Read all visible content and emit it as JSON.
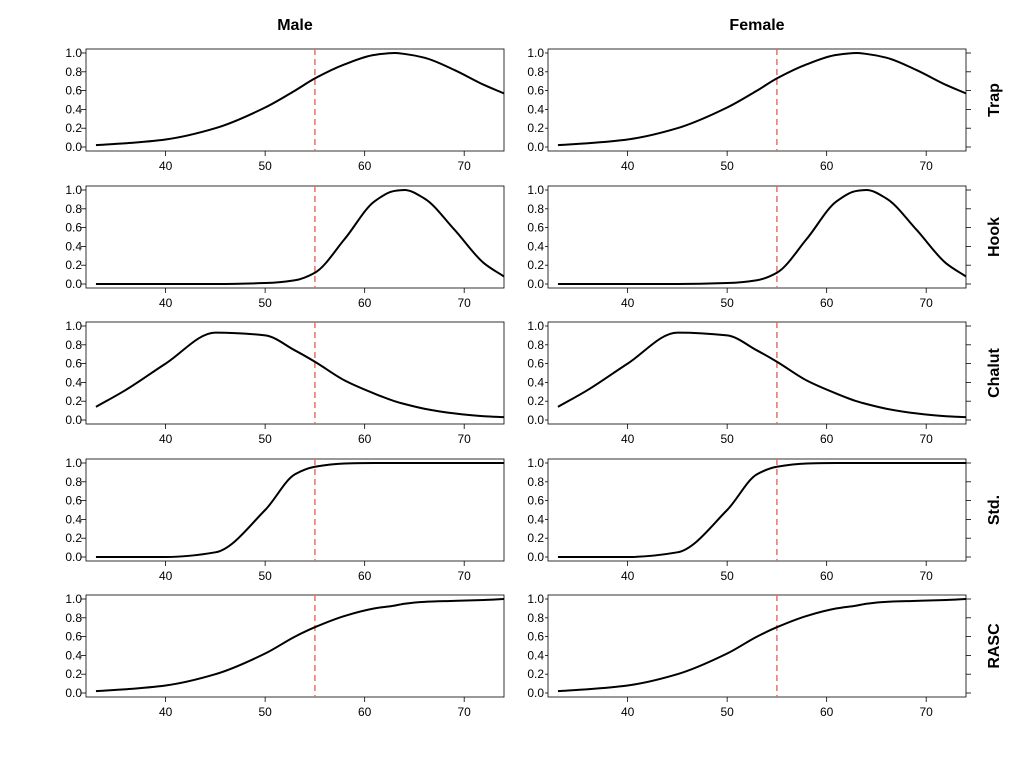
{
  "chart_data": {
    "type": "line",
    "columns": [
      "Male",
      "Female"
    ],
    "rows": [
      "Trap",
      "Hook",
      "Chalut",
      "Std.",
      "RASC"
    ],
    "xlim": [
      32,
      74
    ],
    "ylim": [
      0,
      1
    ],
    "xticks": [
      40,
      50,
      60,
      70
    ],
    "yticks": [
      0.0,
      0.2,
      0.4,
      0.6,
      0.8,
      1.0
    ],
    "ytick_labels": [
      "0.0",
      "0.2",
      "0.4",
      "0.6",
      "0.8",
      "1.0"
    ],
    "reference_line": {
      "x": 55,
      "color": "#e8675f",
      "style": "dashed"
    },
    "line_color": "#000000",
    "x": [
      33,
      36,
      40,
      45,
      50,
      53,
      55,
      58,
      61,
      63,
      64,
      66,
      69,
      72,
      74
    ],
    "panels": [
      {
        "row": "Trap",
        "column": "Male",
        "y": [
          0.02,
          0.04,
          0.08,
          0.2,
          0.42,
          0.6,
          0.73,
          0.88,
          0.98,
          1.0,
          0.99,
          0.95,
          0.82,
          0.66,
          0.57
        ]
      },
      {
        "row": "Trap",
        "column": "Female",
        "y": [
          0.02,
          0.04,
          0.08,
          0.2,
          0.42,
          0.6,
          0.73,
          0.88,
          0.98,
          1.0,
          0.99,
          0.95,
          0.82,
          0.66,
          0.57
        ]
      },
      {
        "row": "Hook",
        "column": "Male",
        "y": [
          0.0,
          0.0,
          0.0,
          0.0,
          0.01,
          0.04,
          0.12,
          0.48,
          0.88,
          0.99,
          1.0,
          0.91,
          0.58,
          0.22,
          0.08
        ]
      },
      {
        "row": "Hook",
        "column": "Female",
        "y": [
          0.0,
          0.0,
          0.0,
          0.0,
          0.01,
          0.04,
          0.12,
          0.48,
          0.88,
          0.99,
          1.0,
          0.91,
          0.58,
          0.22,
          0.08
        ]
      },
      {
        "row": "Chalut",
        "column": "Male",
        "y": [
          0.14,
          0.32,
          0.6,
          0.93,
          0.9,
          0.74,
          0.62,
          0.42,
          0.28,
          0.2,
          0.17,
          0.12,
          0.07,
          0.04,
          0.03
        ]
      },
      {
        "row": "Chalut",
        "column": "Female",
        "y": [
          0.14,
          0.32,
          0.6,
          0.93,
          0.9,
          0.74,
          0.62,
          0.42,
          0.28,
          0.2,
          0.17,
          0.12,
          0.07,
          0.04,
          0.03
        ]
      },
      {
        "row": "Std.",
        "column": "Male",
        "y": [
          0.0,
          0.0,
          0.0,
          0.05,
          0.5,
          0.88,
          0.96,
          0.995,
          1.0,
          1.0,
          1.0,
          1.0,
          1.0,
          1.0,
          1.0
        ]
      },
      {
        "row": "Std.",
        "column": "Female",
        "y": [
          0.0,
          0.0,
          0.0,
          0.05,
          0.5,
          0.88,
          0.96,
          0.995,
          1.0,
          1.0,
          1.0,
          1.0,
          1.0,
          1.0,
          1.0
        ]
      },
      {
        "row": "RASC",
        "column": "Male",
        "y": [
          0.02,
          0.04,
          0.08,
          0.2,
          0.42,
          0.6,
          0.7,
          0.82,
          0.9,
          0.93,
          0.95,
          0.97,
          0.98,
          0.99,
          1.0
        ]
      },
      {
        "row": "RASC",
        "column": "Female",
        "y": [
          0.02,
          0.04,
          0.08,
          0.2,
          0.42,
          0.6,
          0.7,
          0.82,
          0.9,
          0.93,
          0.95,
          0.97,
          0.98,
          0.99,
          1.0
        ]
      }
    ]
  }
}
